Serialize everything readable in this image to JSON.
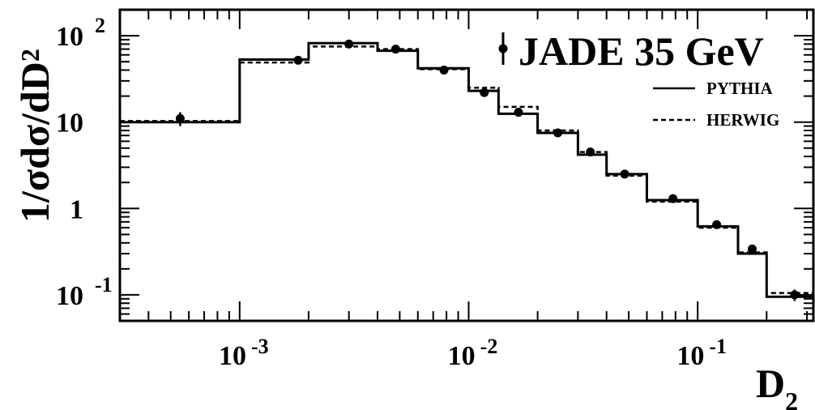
{
  "chart_data": {
    "type": "line",
    "title": "JADE 35 GeV",
    "xlabel": "D",
    "xlabel_sub": "2",
    "ylabel": "1/σdσ/dD",
    "ylabel_sub": "2",
    "xscale": "log",
    "yscale": "log",
    "xlim": [
      0.0003,
      0.32
    ],
    "ylim": [
      0.05,
      200
    ],
    "grid": false,
    "legend_position": "top-right",
    "x_ticks": [
      {
        "value": 0.001,
        "base": "10",
        "exp": "-3"
      },
      {
        "value": 0.01,
        "base": "10",
        "exp": "-2"
      },
      {
        "value": 0.1,
        "base": "10",
        "exp": "-1"
      }
    ],
    "y_ticks": [
      {
        "value": 0.1,
        "base": "10",
        "exp": "-1"
      },
      {
        "value": 1,
        "base": "1",
        "exp": ""
      },
      {
        "value": 10,
        "base": "10",
        "exp": ""
      },
      {
        "value": 100,
        "base": "10",
        "exp": "2"
      }
    ],
    "bin_edges": [
      0.0003,
      0.001,
      0.002,
      0.004,
      0.006,
      0.01,
      0.0135,
      0.02,
      0.03,
      0.04,
      0.06,
      0.1,
      0.15,
      0.2,
      0.32
    ],
    "series": [
      {
        "name": "JADE 35 GeV",
        "kind": "points",
        "x": [
          0.00055,
          0.0018,
          0.003,
          0.0048,
          0.0078,
          0.0117,
          0.0165,
          0.0245,
          0.034,
          0.048,
          0.078,
          0.121,
          0.173,
          0.265
        ],
        "y": [
          11,
          52,
          80,
          70,
          40,
          22,
          13,
          7.5,
          4.5,
          2.5,
          1.3,
          0.65,
          0.34,
          0.1
        ],
        "yerr": [
          2,
          3,
          4,
          3,
          2,
          1.2,
          0.8,
          0.4,
          0.25,
          0.15,
          0.08,
          0.04,
          0.03,
          0.015
        ]
      },
      {
        "name": "PYTHIA",
        "kind": "step-solid",
        "values": [
          10,
          53,
          82,
          67,
          42,
          23,
          12.5,
          7.5,
          4.2,
          2.5,
          1.25,
          0.62,
          0.3,
          0.095
        ]
      },
      {
        "name": "HERWIG",
        "kind": "step-dashed",
        "values": [
          10.3,
          49,
          75,
          70,
          41,
          25,
          15,
          8,
          4.5,
          2.4,
          1.2,
          0.6,
          0.31,
          0.105
        ]
      }
    ]
  }
}
